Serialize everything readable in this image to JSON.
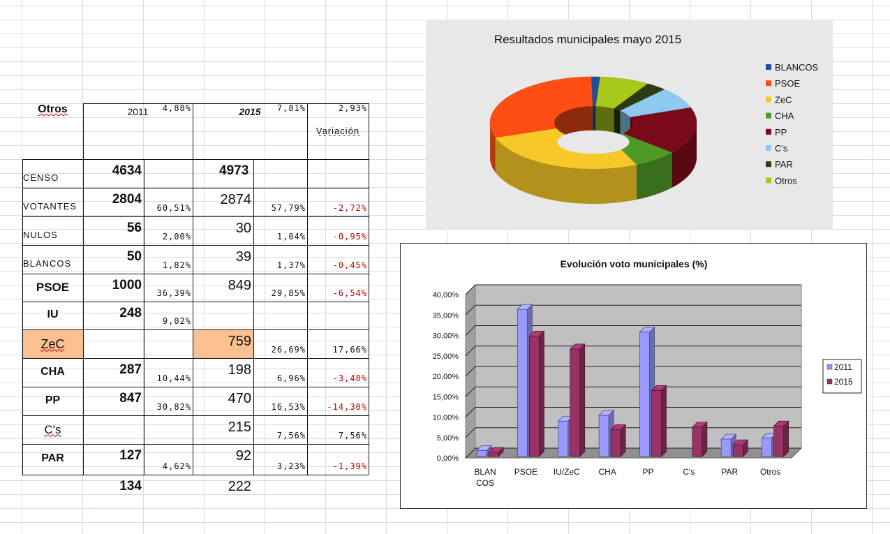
{
  "table": {
    "headers": {
      "y2011": "2011",
      "y2015": "2015",
      "variation": "Variación"
    },
    "rows": [
      {
        "label": "CENSO",
        "style": "small",
        "v2011": "4634",
        "p2011": "",
        "v2015": "4973",
        "p2015": "",
        "var": "",
        "neg": false,
        "bold2015": true
      },
      {
        "label": "VOTANTES",
        "style": "small",
        "v2011": "2804",
        "p2011": "60,51%",
        "v2015": "2874",
        "p2015": "57,79%",
        "var": "-2,72%",
        "neg": true
      },
      {
        "label": "NULOS",
        "style": "small",
        "v2011": "56",
        "p2011": "2,00%",
        "v2015": "30",
        "p2015": "1,04%",
        "var": "-0,95%",
        "neg": true
      },
      {
        "label": "BLANCOS",
        "style": "small",
        "v2011": "50",
        "p2011": "1,82%",
        "v2015": "39",
        "p2015": "1,37%",
        "var": "-0,45%",
        "neg": true
      },
      {
        "label": "PSOE",
        "style": "bold",
        "v2011": "1000",
        "p2011": "36,39%",
        "v2015": "849",
        "p2015": "29,85%",
        "var": "-6,54%",
        "neg": true
      },
      {
        "label": "IU",
        "style": "bold",
        "v2011": "248",
        "p2011": "9,02%",
        "v2015": "",
        "p2015": "",
        "var": "",
        "neg": false
      },
      {
        "label": "ZeC",
        "style": "zec",
        "v2011": "",
        "p2011": "",
        "v2015": "759",
        "p2015": "26,69%",
        "var": "17,66%",
        "neg": false
      },
      {
        "label": "CHA",
        "style": "bold",
        "v2011": "287",
        "p2011": "10,44%",
        "v2015": "198",
        "p2015": "6,96%",
        "var": "-3,48%",
        "neg": true
      },
      {
        "label": "PP",
        "style": "bold",
        "v2011": "847",
        "p2011": "30,82%",
        "v2015": "470",
        "p2015": "16,53%",
        "var": "-14,30%",
        "neg": true
      },
      {
        "label": "C's",
        "style": "bold",
        "v2011": "",
        "p2011": "",
        "v2015": "215",
        "p2015": "7,56%",
        "var": "7,56%",
        "neg": false
      },
      {
        "label": "PAR",
        "style": "bold",
        "v2011": "127",
        "p2011": "4,62%",
        "v2015": "92",
        "p2015": "3,23%",
        "var": "-1,39%",
        "neg": true
      },
      {
        "label": "Otros",
        "style": "bold",
        "v2011": "134",
        "p2011": "4,88%",
        "v2015": "222",
        "p2015": "7,81%",
        "var": "2,93%",
        "neg": false
      }
    ]
  },
  "chart_data": [
    {
      "type": "pie",
      "title": "Resultados municipales mayo 2015",
      "legend_position": "right",
      "slices": [
        {
          "name": "BLANCOS",
          "value": 39,
          "color": "#1f4e9a"
        },
        {
          "name": "PSOE",
          "value": 849,
          "color": "#ff4e14"
        },
        {
          "name": "ZeC",
          "value": 759,
          "color": "#f7c928"
        },
        {
          "name": "CHA",
          "value": 198,
          "color": "#4f9a26"
        },
        {
          "name": "PP",
          "value": 470,
          "color": "#7a0a1a"
        },
        {
          "name": "C's",
          "value": 215,
          "color": "#8ec9f0"
        },
        {
          "name": "PAR",
          "value": 92,
          "color": "#2d3a12"
        },
        {
          "name": "Otros",
          "value": 222,
          "color": "#a8c81a"
        }
      ],
      "order": [
        "PP",
        "CHA",
        "ZeC",
        "PSOE",
        "BLANCOS",
        "Otros",
        "PAR",
        "C's"
      ]
    },
    {
      "type": "bar",
      "title": "Evolución voto municipales (%)",
      "categories": [
        "BLAN COS",
        "PSOE",
        "IU/ZeC",
        "CHA",
        "PP",
        "C's",
        "PAR",
        "Otros"
      ],
      "series": [
        {
          "name": "2011",
          "color": "#9999ff",
          "values": [
            1.82,
            36.39,
            9.02,
            10.44,
            30.82,
            0,
            4.62,
            4.88
          ]
        },
        {
          "name": "2015",
          "color": "#993366",
          "values": [
            1.37,
            29.85,
            26.69,
            6.96,
            16.53,
            7.56,
            3.23,
            7.81
          ]
        }
      ],
      "ylim": [
        0,
        40
      ],
      "yticks": [
        "0,00%",
        "5,00%",
        "10,00%",
        "15,00%",
        "20,00%",
        "25,00%",
        "30,00%",
        "35,00%",
        "40,00%"
      ],
      "legend_position": "right",
      "grid": true
    }
  ]
}
